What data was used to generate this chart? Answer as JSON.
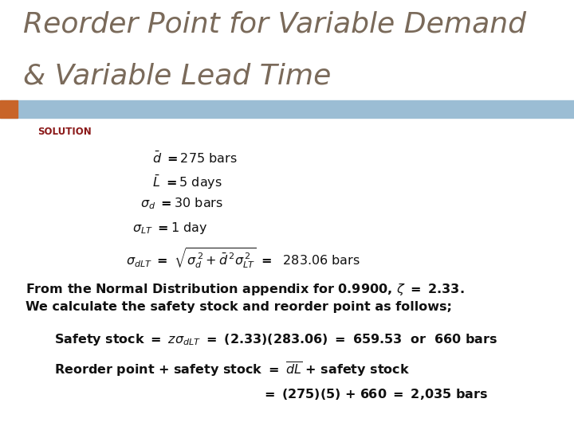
{
  "title_line1": "Reorder Point for Variable Demand",
  "title_line2": "& Variable Lead Time",
  "title_color": "#7a6a5a",
  "title_fontsize": 26,
  "solution_label": "SOLUTION",
  "solution_color": "#8b1a1a",
  "solution_fontsize": 8.5,
  "bg_color": "#ffffff",
  "header_bar_color": "#9bbdd4",
  "header_bar_left_color": "#c86428",
  "body_text_color": "#111111",
  "eq_fontsize": 11.5,
  "bold_fontsize": 11.5
}
